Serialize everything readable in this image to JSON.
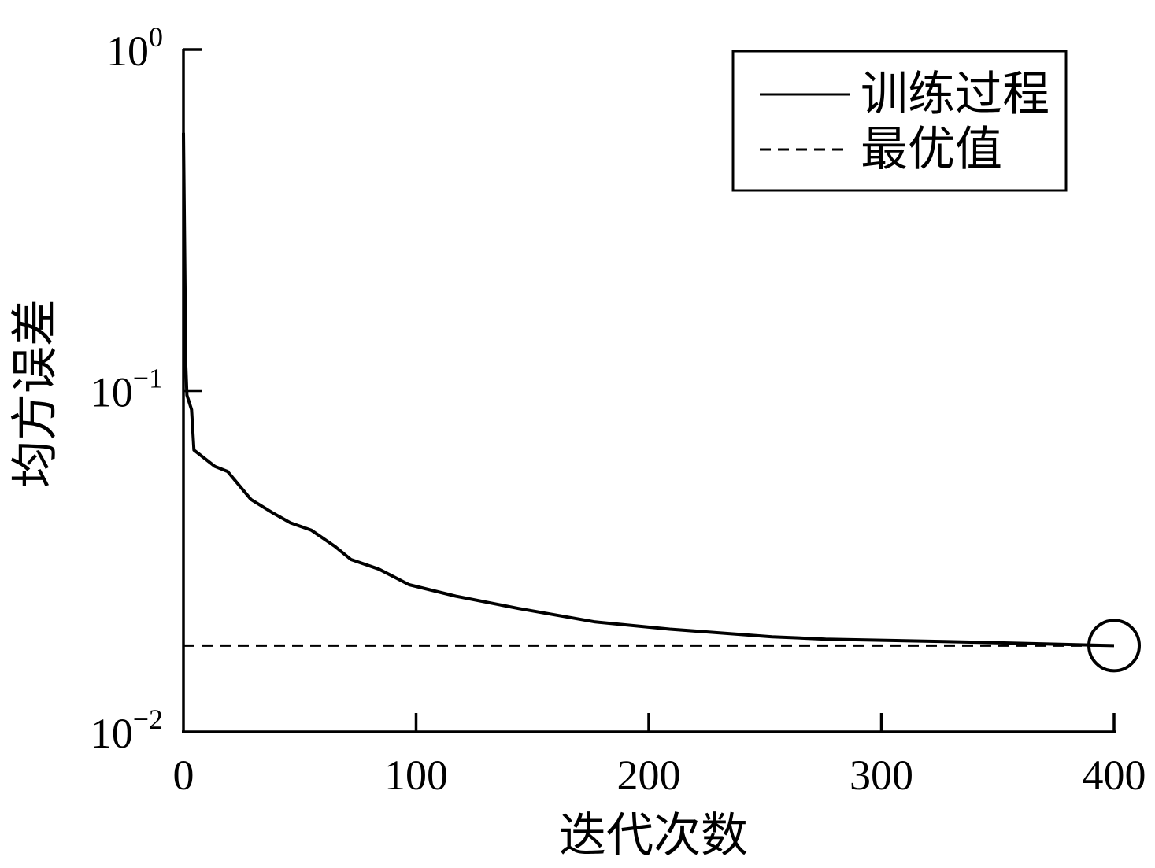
{
  "chart_data": {
    "type": "line",
    "xlabel": "迭代次数",
    "ylabel": "均方误差",
    "xlim": [
      0,
      400
    ],
    "ylim": [
      0.01,
      1
    ],
    "yscale": "log",
    "grid": false,
    "xticks": [
      0,
      100,
      200,
      300,
      400
    ],
    "yticks": [
      0.01,
      0.1,
      1
    ],
    "ytick_labels": [
      {
        "base": "10",
        "exp": "−2"
      },
      {
        "base": "10",
        "exp": "−1"
      },
      {
        "base": "10",
        "exp": "0"
      }
    ],
    "legend": {
      "placement": "top-right"
    },
    "series": [
      {
        "name": "训练过程",
        "line_style": "solid",
        "color": "#000000",
        "x": [
          0,
          1,
          1.5,
          3.5,
          4.5,
          13.5,
          19,
          29,
          38,
          46,
          55,
          65,
          72,
          84,
          97,
          117,
          144,
          177,
          209,
          253,
          276,
          327,
          400
        ],
        "y": [
          0.57,
          0.118,
          0.097,
          0.088,
          0.067,
          0.06,
          0.058,
          0.048,
          0.044,
          0.041,
          0.039,
          0.035,
          0.032,
          0.03,
          0.027,
          0.025,
          0.023,
          0.021,
          0.02,
          0.019,
          0.0187,
          0.0184,
          0.0179
        ]
      },
      {
        "name": "最优值",
        "line_style": "dashed",
        "color": "#000000",
        "x": [
          0,
          400
        ],
        "y": [
          0.0179,
          0.0179
        ]
      }
    ],
    "highlight_point": {
      "x": 400,
      "y": 0.0179
    }
  }
}
